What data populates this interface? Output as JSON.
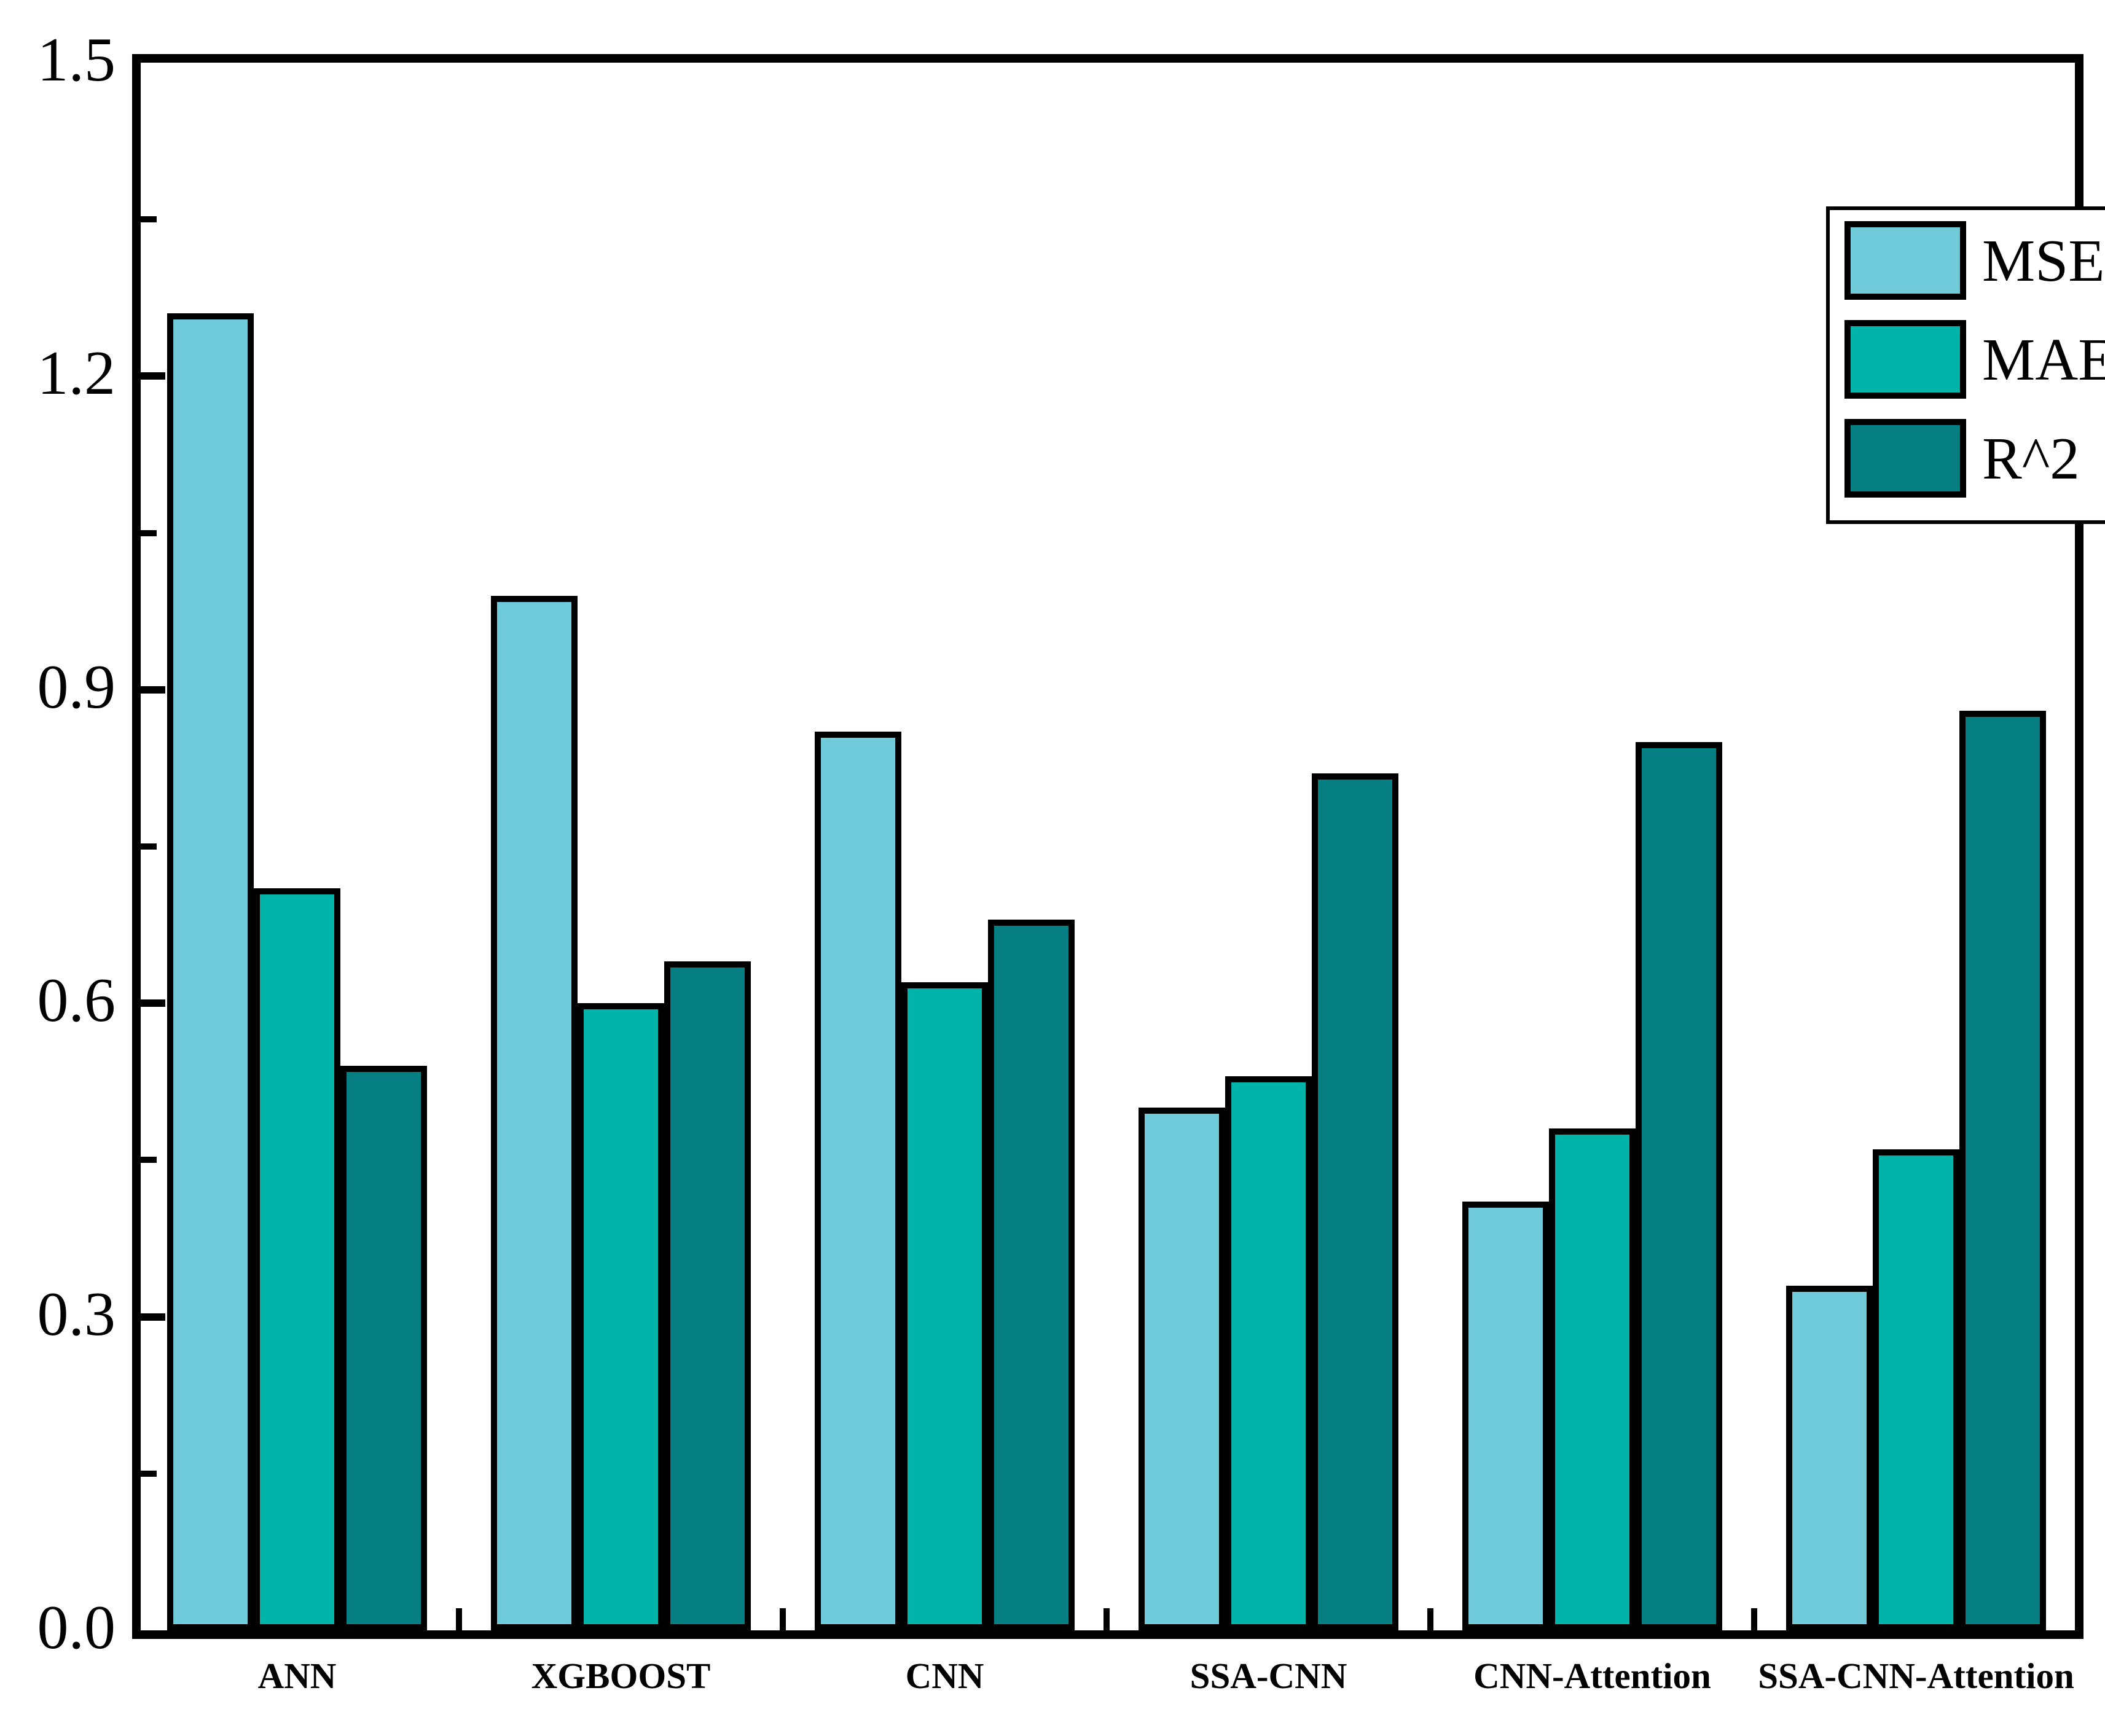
{
  "chart_data": {
    "type": "bar",
    "title": "",
    "xlabel": "",
    "ylabel": "",
    "categories": [
      "ANN",
      "XGBOOST",
      "CNN",
      "SSA-CNN",
      "CNN-Attention",
      "SSA-CNN-Attention"
    ],
    "series": [
      {
        "name": "MSE",
        "color": "#6FCBDA",
        "values": [
          1.26,
          0.99,
          0.86,
          0.5,
          0.41,
          0.33
        ]
      },
      {
        "name": "MAE",
        "color": "#00B4A9",
        "values": [
          0.71,
          0.6,
          0.62,
          0.53,
          0.48,
          0.46
        ]
      },
      {
        "name": "R^2",
        "color": "#057F81",
        "values": [
          0.54,
          0.64,
          0.68,
          0.82,
          0.85,
          0.88
        ]
      }
    ],
    "ylim": [
      0.0,
      1.5
    ],
    "y_major_ticks": [
      0.0,
      0.3,
      0.6,
      0.9,
      1.2,
      1.5
    ],
    "y_tick_labels": [
      "0.0",
      "0.3",
      "0.6",
      "0.9",
      "1.2",
      "1.5"
    ],
    "y_minor_ticks": [
      0.15,
      0.45,
      0.75,
      1.05,
      1.35
    ],
    "grid": false,
    "legend_position": "upper right",
    "bar_edge_color": "#000000",
    "axis_color": "#000000"
  }
}
